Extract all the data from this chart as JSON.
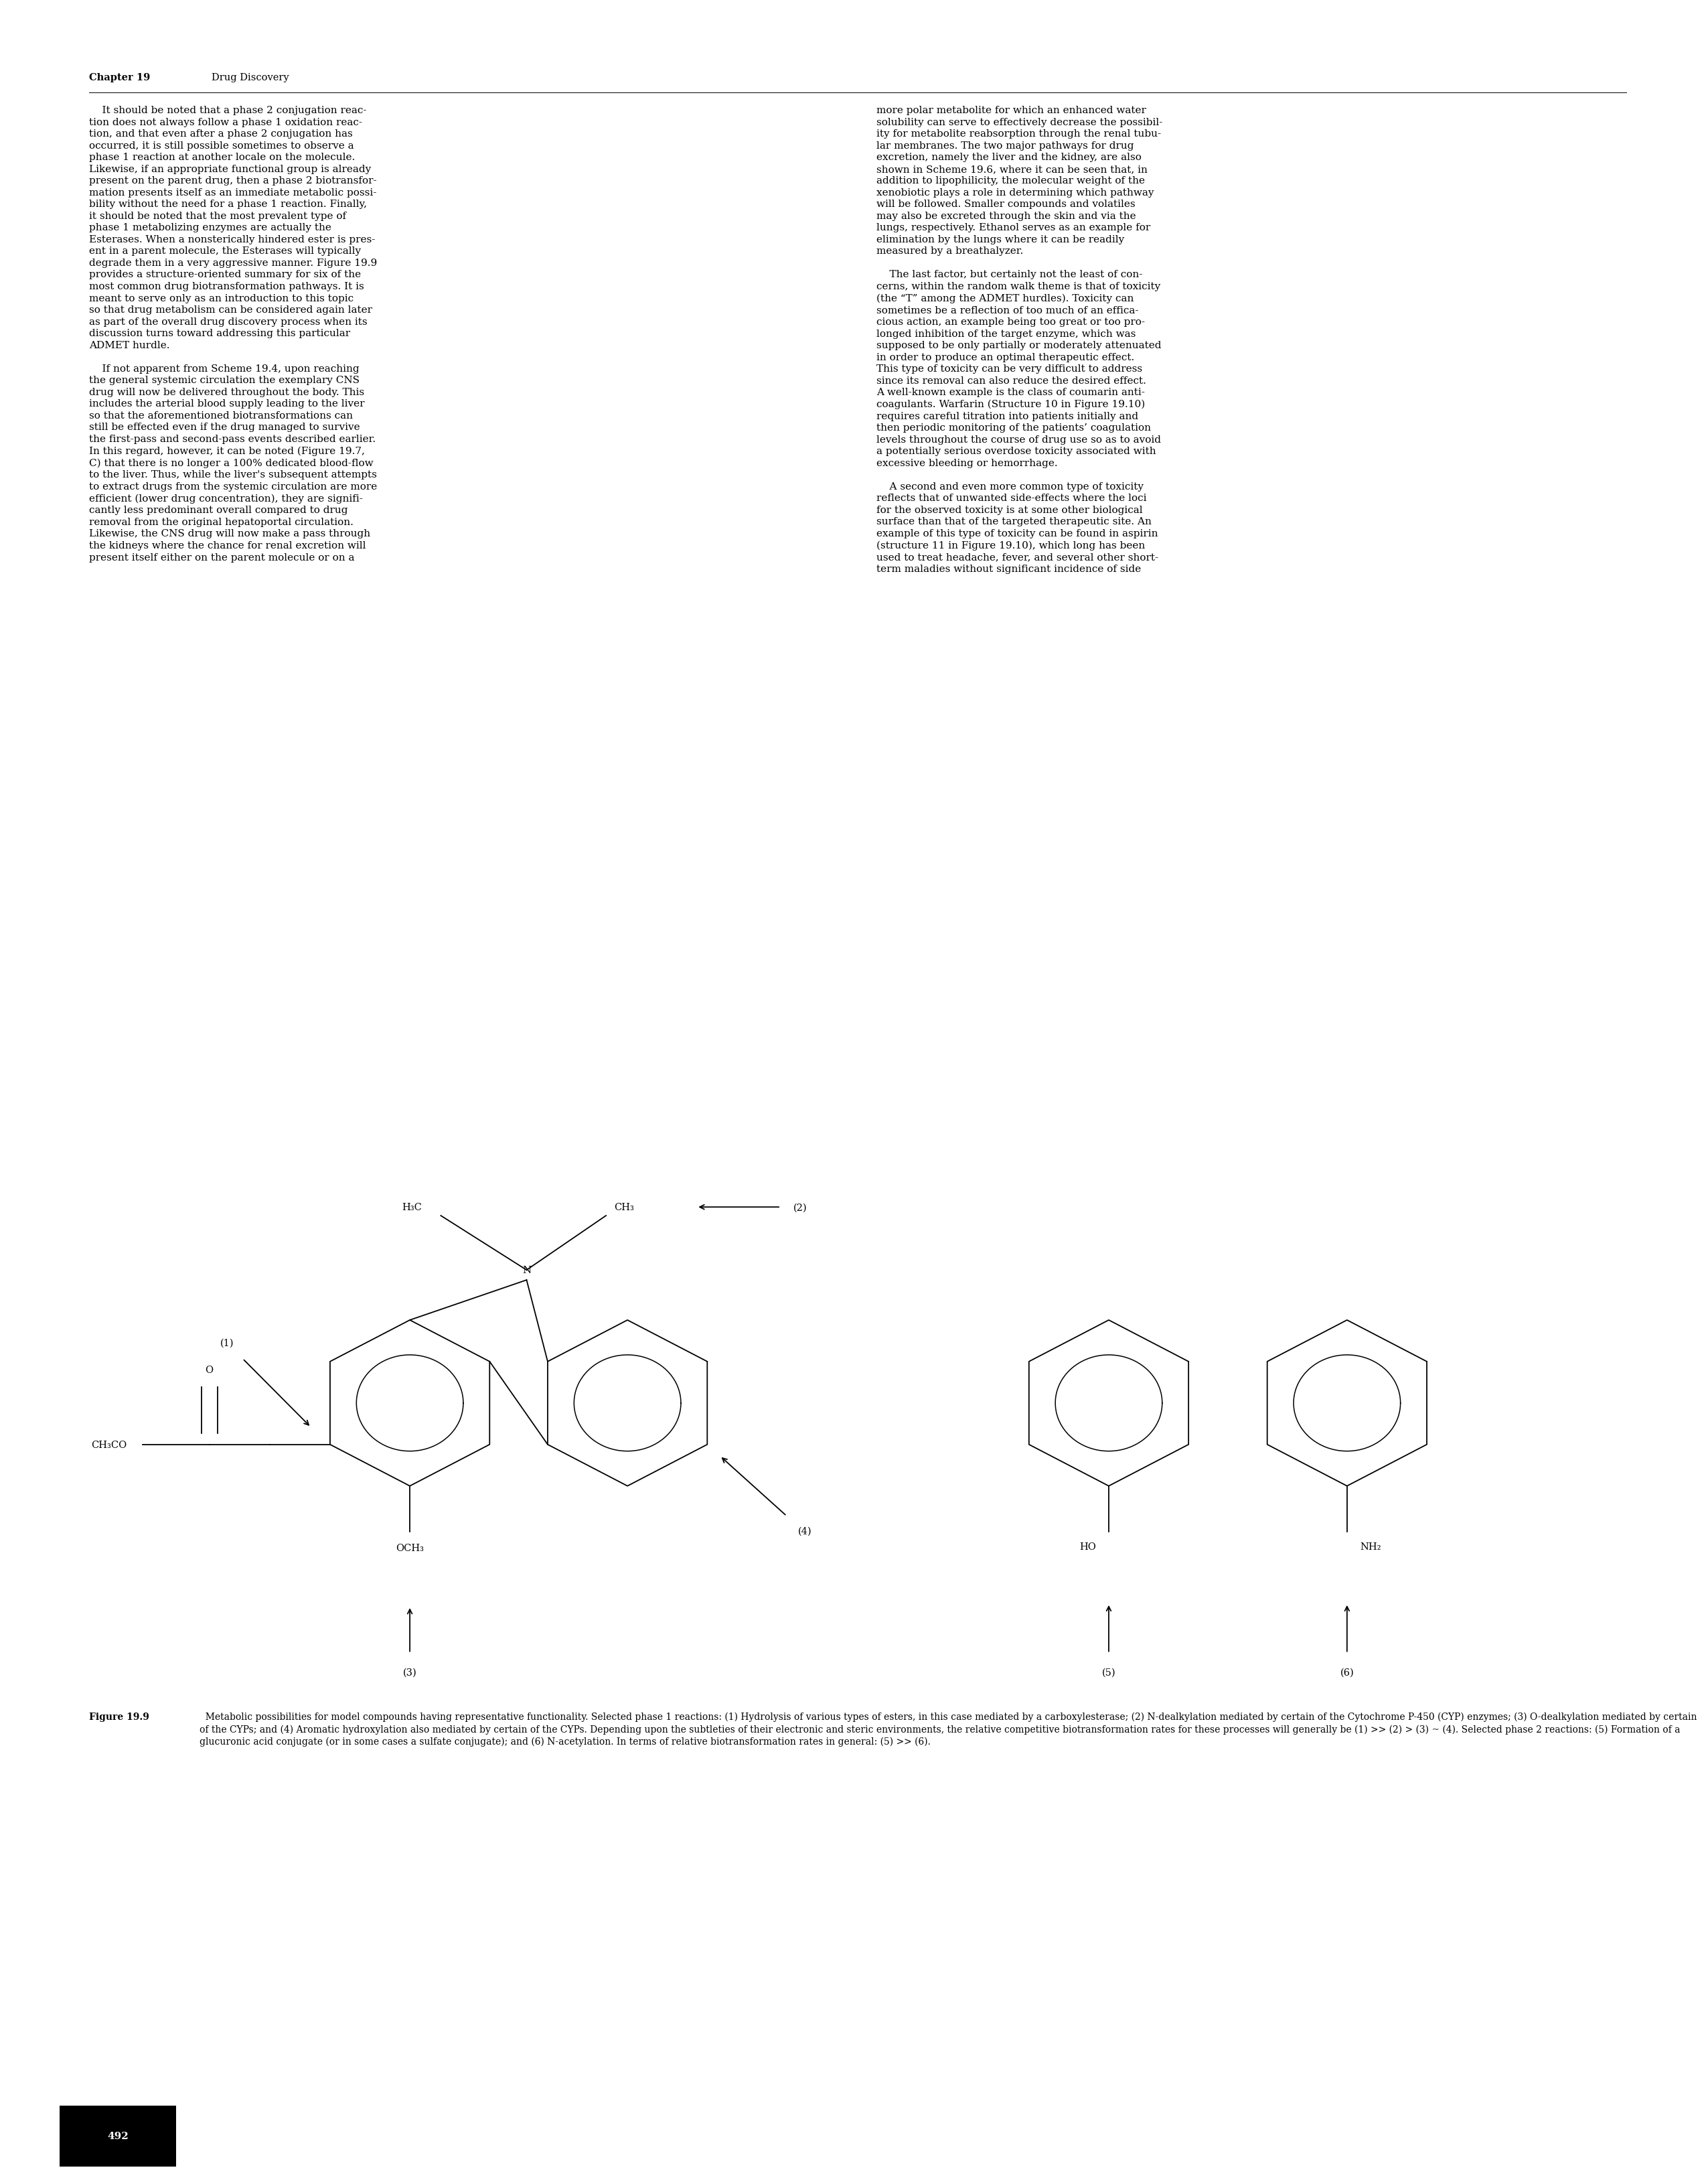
{
  "page_width": 25.51,
  "page_height": 32.62,
  "background_color": "#ffffff",
  "header_bold": "Chapter 19",
  "header_regular": "   Drug Discovery",
  "body_text_left_col": "    It should be noted that a phase 2 conjugation reac-\ntion does not always follow a phase 1 oxidation reac-\ntion, and that even after a phase 2 conjugation has\noccurred, it is still possible sometimes to observe a\nphase 1 reaction at another locale on the molecule.\nLikewise, if an appropriate functional group is already\npresent on the parent drug, then a phase 2 biotransfor-\nmation presents itself as an immediate metabolic possi-\nbility without the need for a phase 1 reaction. Finally,\nit should be noted that the most prevalent type of\nphase 1 metabolizing enzymes are actually the\nEsterases. When a nonsterically hindered ester is pres-\nent in a parent molecule, the Esterases will typically\ndegrade them in a very aggressive manner. Figure 19.9\nprovides a structure-oriented summary for six of the\nmost common drug biotransformation pathways. It is\nmeant to serve only as an introduction to this topic\nso that drug metabolism can be considered again later\nas part of the overall drug discovery process when its\ndiscussion turns toward addressing this particular\nADMET hurdle.\n\n    If not apparent from Scheme 19.4, upon reaching\nthe general systemic circulation the exemplary CNS\ndrug will now be delivered throughout the body. This\nincludes the arterial blood supply leading to the liver\nso that the aforementioned biotransformations can\nstill be effected even if the drug managed to survive\nthe first-pass and second-pass events described earlier.\nIn this regard, however, it can be noted (Figure 19.7,\nC) that there is no longer a 100% dedicated blood-flow\nto the liver. Thus, while the liver's subsequent attempts\nto extract drugs from the systemic circulation are more\nefficient (lower drug concentration), they are signifi-\ncantly less predominant overall compared to drug\nremoval from the original hepatoportal circulation.\nLikewise, the CNS drug will now make a pass through\nthe kidneys where the chance for renal excretion will\npresent itself either on the parent molecule or on a",
  "body_text_right_col": "more polar metabolite for which an enhanced water\nsolubility can serve to effectively decrease the possibil-\nity for metabolite reabsorption through the renal tubu-\nlar membranes. The two major pathways for drug\nexcretion, namely the liver and the kidney, are also\nshown in Scheme 19.6, where it can be seen that, in\naddition to lipophilicity, the molecular weight of the\nxenobiotic plays a role in determining which pathway\nwill be followed. Smaller compounds and volatiles\nmay also be excreted through the skin and via the\nlungs, respectively. Ethanol serves as an example for\nelimination by the lungs where it can be readily\nmeasured by a breathalyzer.\n\n    The last factor, but certainly not the least of con-\ncerns, within the random walk theme is that of toxicity\n(the “T” among the ADMET hurdles). Toxicity can\nsometimes be a reflection of too much of an effica-\ncious action, an example being too great or too pro-\nlonged inhibition of the target enzyme, which was\nsupposed to be only partially or moderately attenuated\nin order to produce an optimal therapeutic effect.\nThis type of toxicity can be very difficult to address\nsince its removal can also reduce the desired effect.\nA well-known example is the class of coumarin anti-\ncoagulants. Warfarin (Structure 10 in Figure 19.10)\nrequires careful titration into patients initially and\nthen periodic monitoring of the patients’ coagulation\nlevels throughout the course of drug use so as to avoid\na potentially serious overdose toxicity associated with\nexcessive bleeding or hemorrhage.\n\n    A second and even more common type of toxicity\nreflects that of unwanted side-effects where the loci\nfor the observed toxicity is at some other biological\nsurface than that of the targeted therapeutic site. An\nexample of this type of toxicity can be found in aspirin\n(structure 11 in Figure 19.10), which long has been\nused to treat headache, fever, and several other short-\nterm maladies without significant incidence of side",
  "caption_bold": "Figure 19.9",
  "caption_text": "  Metabolic possibilities for model compounds having representative functionality. Selected phase 1 reactions: (1) Hydrolysis of various types of esters, in this case mediated by a carboxylesterase; (2) N-dealkylation mediated by certain of the Cytochrome P-450 (CYP) enzymes; (3) O-dealkylation mediated by certain of the CYPs; and (4) Aromatic hydroxylation also mediated by certain of the CYPs. Depending upon the subtleties of their electronic and steric environments, the relative competitive biotransformation rates for these processes will generally be (1) >> (2) > (3) ~ (4). Selected phase 2 reactions: (5) Formation of a glucuronic acid conjugate (or in some cases a sulfate conjugate); and (6) N-acetylation. In terms of relative biotransformation rates in general: (5) >> (6).",
  "page_number": "492",
  "font_family": "DejaVu Serif",
  "body_fontsize": 11.0,
  "caption_fontsize": 10.5,
  "text_color": "#000000"
}
